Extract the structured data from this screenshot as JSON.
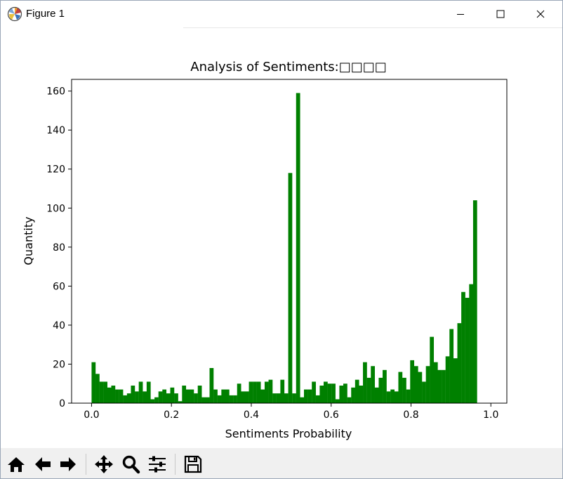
{
  "window": {
    "title": "Figure 1"
  },
  "toolbar": {
    "buttons": [
      {
        "name": "home-icon"
      },
      {
        "name": "back-arrow-icon"
      },
      {
        "name": "forward-arrow-icon"
      },
      {
        "name": "pan-icon"
      },
      {
        "name": "zoom-icon"
      },
      {
        "name": "configure-subplots-icon"
      },
      {
        "name": "save-icon"
      }
    ]
  },
  "chart_data": {
    "type": "bar",
    "title": "Analysis of Sentiments:□□□□",
    "xlabel": "Sentiments Probability",
    "ylabel": "Quantity",
    "bar_color": "#008000",
    "xlim": [
      -0.05,
      1.04
    ],
    "ylim": [
      0,
      166
    ],
    "xticks": [
      "0.0",
      "0.2",
      "0.4",
      "0.6",
      "0.8",
      "1.0"
    ],
    "yticks": [
      "0",
      "20",
      "40",
      "60",
      "80",
      "100",
      "120",
      "140",
      "160"
    ],
    "bin_width": 0.00985,
    "bins_start": 0.0,
    "values": [
      21,
      15,
      11,
      11,
      8,
      9,
      7,
      7,
      4,
      5,
      9,
      6,
      11,
      6,
      11,
      2,
      3,
      6,
      7,
      5,
      8,
      5,
      1,
      9,
      7,
      7,
      5,
      9,
      3,
      3,
      18,
      7,
      4,
      7,
      7,
      4,
      4,
      10,
      6,
      6,
      11,
      11,
      11,
      7,
      11,
      12,
      5,
      5,
      12,
      5,
      118,
      5,
      159,
      3,
      7,
      7,
      11,
      4,
      9,
      11,
      10,
      10,
      2,
      9,
      10,
      3,
      8,
      12,
      9,
      21,
      13,
      19,
      8,
      13,
      17,
      6,
      7,
      6,
      16,
      13,
      7,
      22,
      19,
      16,
      11,
      19,
      34,
      21,
      17,
      17,
      24,
      38,
      23,
      41,
      57,
      54,
      61,
      104
    ]
  }
}
